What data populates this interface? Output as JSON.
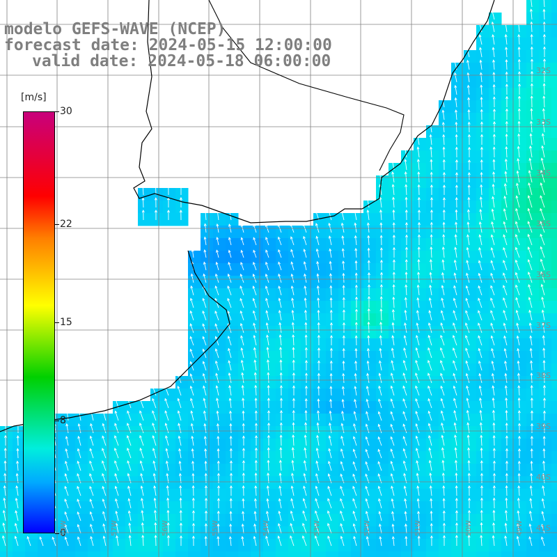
{
  "title": {
    "line1": "modelo GEFS-WAVE (NCEP)",
    "line2": "forecast date: 2024-05-15 12:00:00",
    "line3": "valid date: 2024-05-18 06:00:00"
  },
  "colorbar": {
    "unit": "[m/s]",
    "labels": [
      "30",
      "22",
      "15",
      "8",
      "0"
    ],
    "label_values": [
      30,
      22,
      15,
      8,
      0
    ],
    "min": 0,
    "max": 30,
    "colors": [
      "#c8007c",
      "#ff0000",
      "#ff7f00",
      "#ffff00",
      "#00d000",
      "#00eedd",
      "#00aaff",
      "#0000ff"
    ]
  },
  "map": {
    "lat_labels": [
      "32S",
      "33S",
      "34S",
      "35S",
      "36S",
      "37S",
      "38S",
      "39S",
      "40S",
      "41S"
    ],
    "lon_labels": [
      "58W",
      "57W",
      "56W",
      "55W",
      "54W",
      "53W",
      "52W",
      "51W",
      "50W",
      "49W"
    ],
    "land_color": "#ffffff",
    "grid_color": "#808080",
    "arrow_color": "#ffffff",
    "wind_field": {
      "dominant_direction": "north-northwest",
      "typical_speed_range_ms": [
        3,
        10
      ],
      "max_speed_region": "east (approx. 9-10 m/s)",
      "min_speed_region": "Rio de la Plata estuary (approx. 3-4 m/s)"
    }
  }
}
